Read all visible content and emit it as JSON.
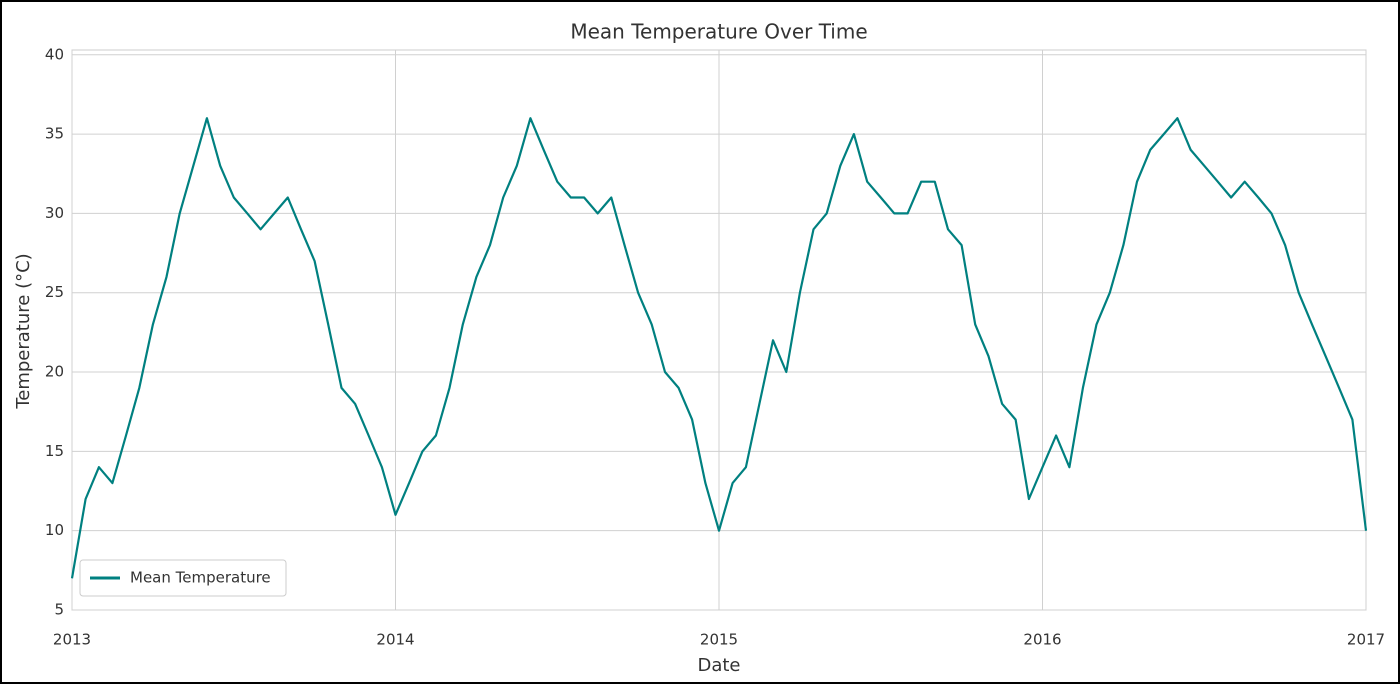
{
  "chart_data": {
    "type": "line",
    "title": "Mean Temperature Over Time",
    "x_label": "Date",
    "y_label": "Temperature (°C)",
    "x": [
      2013.0,
      2013.042,
      2013.083,
      2013.125,
      2013.167,
      2013.208,
      2013.25,
      2013.292,
      2013.333,
      2013.375,
      2013.417,
      2013.458,
      2013.5,
      2013.542,
      2013.583,
      2013.625,
      2013.667,
      2013.708,
      2013.75,
      2013.792,
      2013.833,
      2013.875,
      2013.917,
      2013.958,
      2014.0,
      2014.042,
      2014.083,
      2014.125,
      2014.167,
      2014.208,
      2014.25,
      2014.292,
      2014.333,
      2014.375,
      2014.417,
      2014.458,
      2014.5,
      2014.542,
      2014.583,
      2014.625,
      2014.667,
      2014.708,
      2014.75,
      2014.792,
      2014.833,
      2014.875,
      2014.917,
      2014.958,
      2015.0,
      2015.042,
      2015.083,
      2015.125,
      2015.167,
      2015.208,
      2015.25,
      2015.292,
      2015.333,
      2015.375,
      2015.417,
      2015.458,
      2015.5,
      2015.542,
      2015.583,
      2015.625,
      2015.667,
      2015.708,
      2015.75,
      2015.792,
      2015.833,
      2015.875,
      2015.917,
      2015.958,
      2016.0,
      2016.042,
      2016.083,
      2016.125,
      2016.167,
      2016.208,
      2016.25,
      2016.292,
      2016.333,
      2016.375,
      2016.417,
      2016.458,
      2016.5,
      2016.542,
      2016.583,
      2016.625,
      2016.667,
      2016.708,
      2016.75,
      2016.792,
      2016.833,
      2016.875,
      2016.917,
      2016.958,
      2017.0
    ],
    "series": [
      {
        "name": "Mean Temperature",
        "color": "#008080",
        "values": [
          7,
          12,
          14,
          13,
          16,
          19,
          23,
          26,
          30,
          33,
          36,
          33,
          31,
          30,
          29,
          30,
          31,
          29,
          27,
          23,
          19,
          18,
          16,
          14,
          11,
          13,
          15,
          16,
          19,
          23,
          26,
          28,
          31,
          33,
          36,
          34,
          32,
          31,
          31,
          30,
          31,
          28,
          25,
          23,
          20,
          19,
          17,
          13,
          10,
          13,
          14,
          18,
          22,
          20,
          25,
          29,
          30,
          33,
          35,
          32,
          31,
          30,
          30,
          32,
          32,
          29,
          28,
          23,
          21,
          18,
          17,
          12,
          14,
          16,
          14,
          19,
          23,
          25,
          28,
          32,
          34,
          35,
          36,
          34,
          33,
          32,
          31,
          32,
          31,
          30,
          28,
          25,
          23,
          21,
          19,
          17,
          10
        ]
      }
    ],
    "xlim": [
      2013,
      2017
    ],
    "xticks": [
      2013,
      2014,
      2015,
      2016,
      2017
    ],
    "ylim": [
      5,
      40.3
    ],
    "yticks": [
      5,
      10,
      15,
      20,
      25,
      30,
      35,
      40
    ],
    "grid": true,
    "legend": "lower left"
  }
}
